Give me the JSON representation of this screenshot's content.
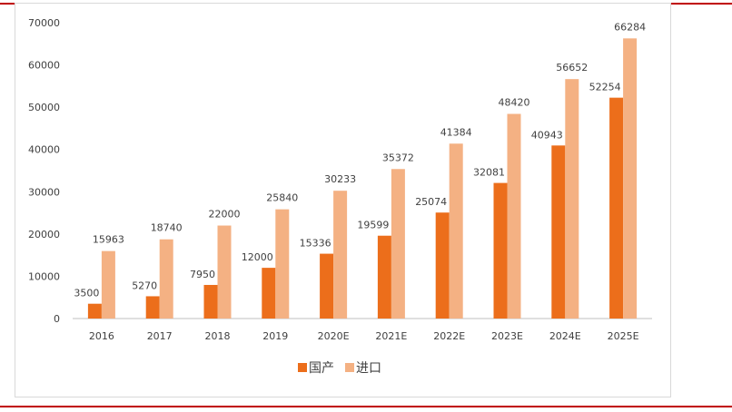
{
  "chart_data": {
    "type": "bar",
    "categories": [
      "2016",
      "2017",
      "2018",
      "2019",
      "2020E",
      "2021E",
      "2022E",
      "2023E",
      "2024E",
      "2025E"
    ],
    "series": [
      {
        "name": "国产",
        "values": [
          3500,
          5270,
          7950,
          12000,
          15336,
          19599,
          25074,
          32081,
          40943,
          52254
        ],
        "color": "#ec6e1b"
      },
      {
        "name": "进口",
        "values": [
          15963,
          18740,
          22000,
          25840,
          30233,
          35372,
          41384,
          48420,
          56652,
          66284
        ],
        "color": "#f4b183"
      }
    ],
    "ylim": [
      0,
      70000
    ],
    "yticks": [
      "0",
      "10000",
      "20000",
      "30000",
      "40000",
      "50000",
      "60000",
      "70000"
    ],
    "grid": false,
    "legend": "bottom-center",
    "title": "",
    "xlabel": "",
    "ylabel": ""
  },
  "colors": {
    "rule": "#c00000",
    "axis": "#bfbfbf",
    "text": "#404040"
  }
}
